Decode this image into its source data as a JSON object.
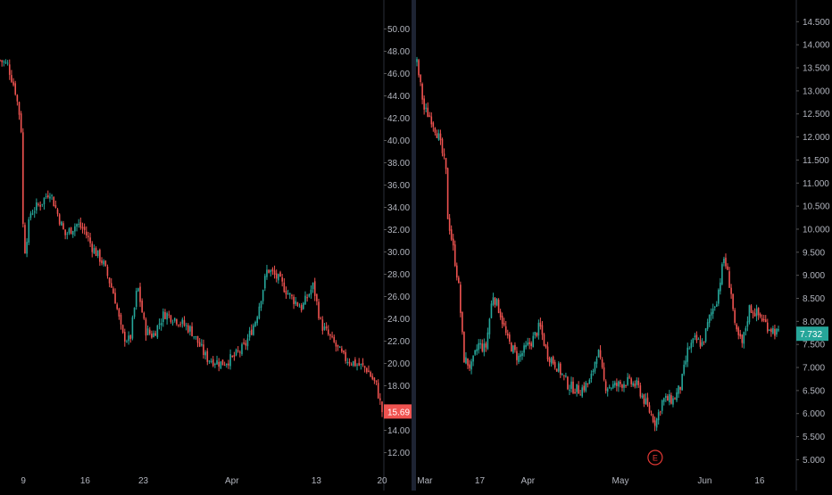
{
  "colors": {
    "background": "#000000",
    "up": "#26a69a",
    "down": "#ef5350",
    "axis_text": "#b2b5be",
    "separator": "#2a2e39",
    "left_price_tag": "#ef5350",
    "right_price_tag": "#26a69a",
    "earnings_marker": "#e53935"
  },
  "chart_data": [
    {
      "type": "candlestick",
      "title": "",
      "ylim": [
        11,
        51
      ],
      "y_ticks": [
        "12.00",
        "14.00",
        "16.00",
        "18.00",
        "20.00",
        "22.00",
        "24.00",
        "26.00",
        "28.00",
        "30.00",
        "32.00",
        "34.00",
        "36.00",
        "38.00",
        "40.00",
        "42.00",
        "44.00",
        "46.00",
        "48.00",
        "50.00"
      ],
      "x_ticks": [
        "9",
        "16",
        "23",
        "Apr",
        "13",
        "20"
      ],
      "x_tick_pos": [
        0.061,
        0.223,
        0.375,
        0.607,
        0.828,
        1.0
      ],
      "last_price": "15.69",
      "last_value": 15.69,
      "grid": false,
      "series": [
        {
          "x": 0.0,
          "y": 47.2
        },
        {
          "x": 0.02,
          "y": 46.8
        },
        {
          "x": 0.04,
          "y": 44.5
        },
        {
          "x": 0.055,
          "y": 41.5
        },
        {
          "x": 0.062,
          "y": 29.5
        },
        {
          "x": 0.08,
          "y": 33.5
        },
        {
          "x": 0.11,
          "y": 34.5
        },
        {
          "x": 0.13,
          "y": 35.5
        },
        {
          "x": 0.15,
          "y": 33.5
        },
        {
          "x": 0.17,
          "y": 31.5
        },
        {
          "x": 0.2,
          "y": 32.5
        },
        {
          "x": 0.22,
          "y": 32.0
        },
        {
          "x": 0.24,
          "y": 30.5
        },
        {
          "x": 0.27,
          "y": 29.0
        },
        {
          "x": 0.3,
          "y": 26.0
        },
        {
          "x": 0.32,
          "y": 22.5
        },
        {
          "x": 0.34,
          "y": 22.0
        },
        {
          "x": 0.36,
          "y": 27.0
        },
        {
          "x": 0.38,
          "y": 23.0
        },
        {
          "x": 0.4,
          "y": 22.5
        },
        {
          "x": 0.43,
          "y": 24.5
        },
        {
          "x": 0.46,
          "y": 24.0
        },
        {
          "x": 0.5,
          "y": 23.0
        },
        {
          "x": 0.54,
          "y": 20.5
        },
        {
          "x": 0.58,
          "y": 20.0
        },
        {
          "x": 0.61,
          "y": 20.5
        },
        {
          "x": 0.64,
          "y": 21.5
        },
        {
          "x": 0.67,
          "y": 24.0
        },
        {
          "x": 0.7,
          "y": 28.5
        },
        {
          "x": 0.73,
          "y": 27.5
        },
        {
          "x": 0.76,
          "y": 26.0
        },
        {
          "x": 0.79,
          "y": 25.0
        },
        {
          "x": 0.82,
          "y": 27.0
        },
        {
          "x": 0.84,
          "y": 23.5
        },
        {
          "x": 0.87,
          "y": 22.0
        },
        {
          "x": 0.9,
          "y": 20.5
        },
        {
          "x": 0.93,
          "y": 20.0
        },
        {
          "x": 0.96,
          "y": 19.5
        },
        {
          "x": 0.985,
          "y": 18.0
        },
        {
          "x": 1.0,
          "y": 15.7
        }
      ]
    },
    {
      "type": "candlestick",
      "title": "",
      "ylim": [
        4.95,
        14.7
      ],
      "y_ticks": [
        "5.000",
        "5.500",
        "6.000",
        "6.500",
        "7.000",
        "7.500",
        "8.000",
        "8.500",
        "9.000",
        "9.500",
        "10.000",
        "10.500",
        "11.000",
        "11.500",
        "12.000",
        "12.500",
        "13.000",
        "13.500",
        "14.000",
        "14.500"
      ],
      "x_ticks": [
        "Mar",
        "17",
        "Apr",
        "May",
        "Jun",
        "16"
      ],
      "x_tick_pos": [
        0.022,
        0.174,
        0.307,
        0.563,
        0.796,
        0.948
      ],
      "last_price": "7.732",
      "last_value": 7.732,
      "earnings_marker": "E",
      "earnings_pos": 0.659,
      "grid": false,
      "series": [
        {
          "x": 0.0,
          "y": 13.6
        },
        {
          "x": 0.02,
          "y": 12.6
        },
        {
          "x": 0.04,
          "y": 12.4
        },
        {
          "x": 0.06,
          "y": 12.0
        },
        {
          "x": 0.08,
          "y": 11.3
        },
        {
          "x": 0.085,
          "y": 10.3
        },
        {
          "x": 0.1,
          "y": 9.6
        },
        {
          "x": 0.115,
          "y": 8.8
        },
        {
          "x": 0.13,
          "y": 7.2
        },
        {
          "x": 0.15,
          "y": 7.0
        },
        {
          "x": 0.17,
          "y": 7.5
        },
        {
          "x": 0.19,
          "y": 7.4
        },
        {
          "x": 0.21,
          "y": 8.6
        },
        {
          "x": 0.23,
          "y": 8.2
        },
        {
          "x": 0.25,
          "y": 7.6
        },
        {
          "x": 0.28,
          "y": 7.2
        },
        {
          "x": 0.3,
          "y": 7.4
        },
        {
          "x": 0.32,
          "y": 7.6
        },
        {
          "x": 0.34,
          "y": 7.9
        },
        {
          "x": 0.36,
          "y": 7.3
        },
        {
          "x": 0.39,
          "y": 7.0
        },
        {
          "x": 0.42,
          "y": 6.6
        },
        {
          "x": 0.45,
          "y": 6.5
        },
        {
          "x": 0.48,
          "y": 6.7
        },
        {
          "x": 0.5,
          "y": 7.4
        },
        {
          "x": 0.52,
          "y": 6.6
        },
        {
          "x": 0.55,
          "y": 6.6
        },
        {
          "x": 0.58,
          "y": 6.7
        },
        {
          "x": 0.61,
          "y": 6.6
        },
        {
          "x": 0.64,
          "y": 6.1
        },
        {
          "x": 0.66,
          "y": 5.8
        },
        {
          "x": 0.68,
          "y": 6.3
        },
        {
          "x": 0.71,
          "y": 6.3
        },
        {
          "x": 0.73,
          "y": 6.6
        },
        {
          "x": 0.75,
          "y": 7.4
        },
        {
          "x": 0.77,
          "y": 7.6
        },
        {
          "x": 0.79,
          "y": 7.5
        },
        {
          "x": 0.81,
          "y": 8.1
        },
        {
          "x": 0.83,
          "y": 8.5
        },
        {
          "x": 0.85,
          "y": 9.4
        },
        {
          "x": 0.87,
          "y": 8.6
        },
        {
          "x": 0.88,
          "y": 7.8
        },
        {
          "x": 0.9,
          "y": 7.5
        },
        {
          "x": 0.92,
          "y": 8.3
        },
        {
          "x": 0.95,
          "y": 8.1
        },
        {
          "x": 0.97,
          "y": 7.9
        },
        {
          "x": 1.0,
          "y": 7.73
        }
      ]
    }
  ]
}
